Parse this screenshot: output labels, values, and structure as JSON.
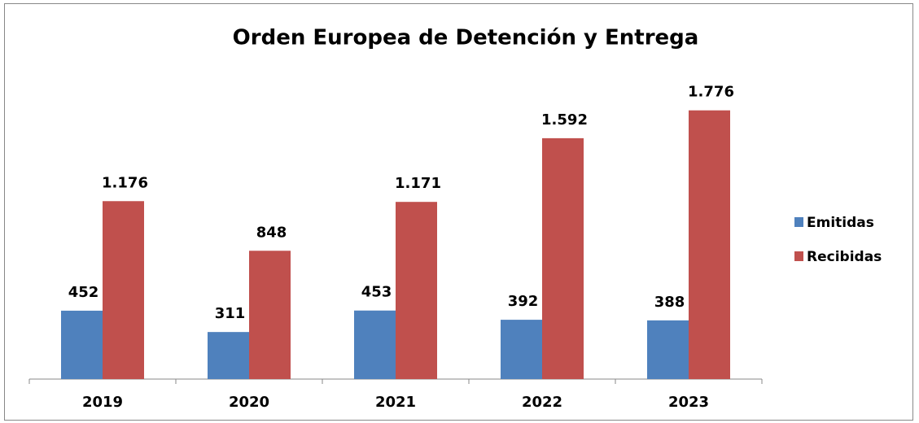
{
  "chart_data": {
    "type": "bar",
    "title": "Orden Europea de Detención y Entrega",
    "categories": [
      "2019",
      "2020",
      "2021",
      "2022",
      "2023"
    ],
    "series": [
      {
        "name": "Emitidas",
        "color": "#4f81bd",
        "values": [
          452,
          311,
          453,
          392,
          388
        ],
        "value_labels": [
          "452",
          "311",
          "453",
          "392",
          "388"
        ]
      },
      {
        "name": "Recibidas",
        "color": "#c0504d",
        "values": [
          1176,
          848,
          1171,
          1592,
          1776
        ],
        "value_labels": [
          "1.176",
          "848",
          "1.171",
          "1.592",
          "1.776"
        ]
      }
    ],
    "ylim": [
      0,
      2000
    ],
    "legend": "right"
  }
}
